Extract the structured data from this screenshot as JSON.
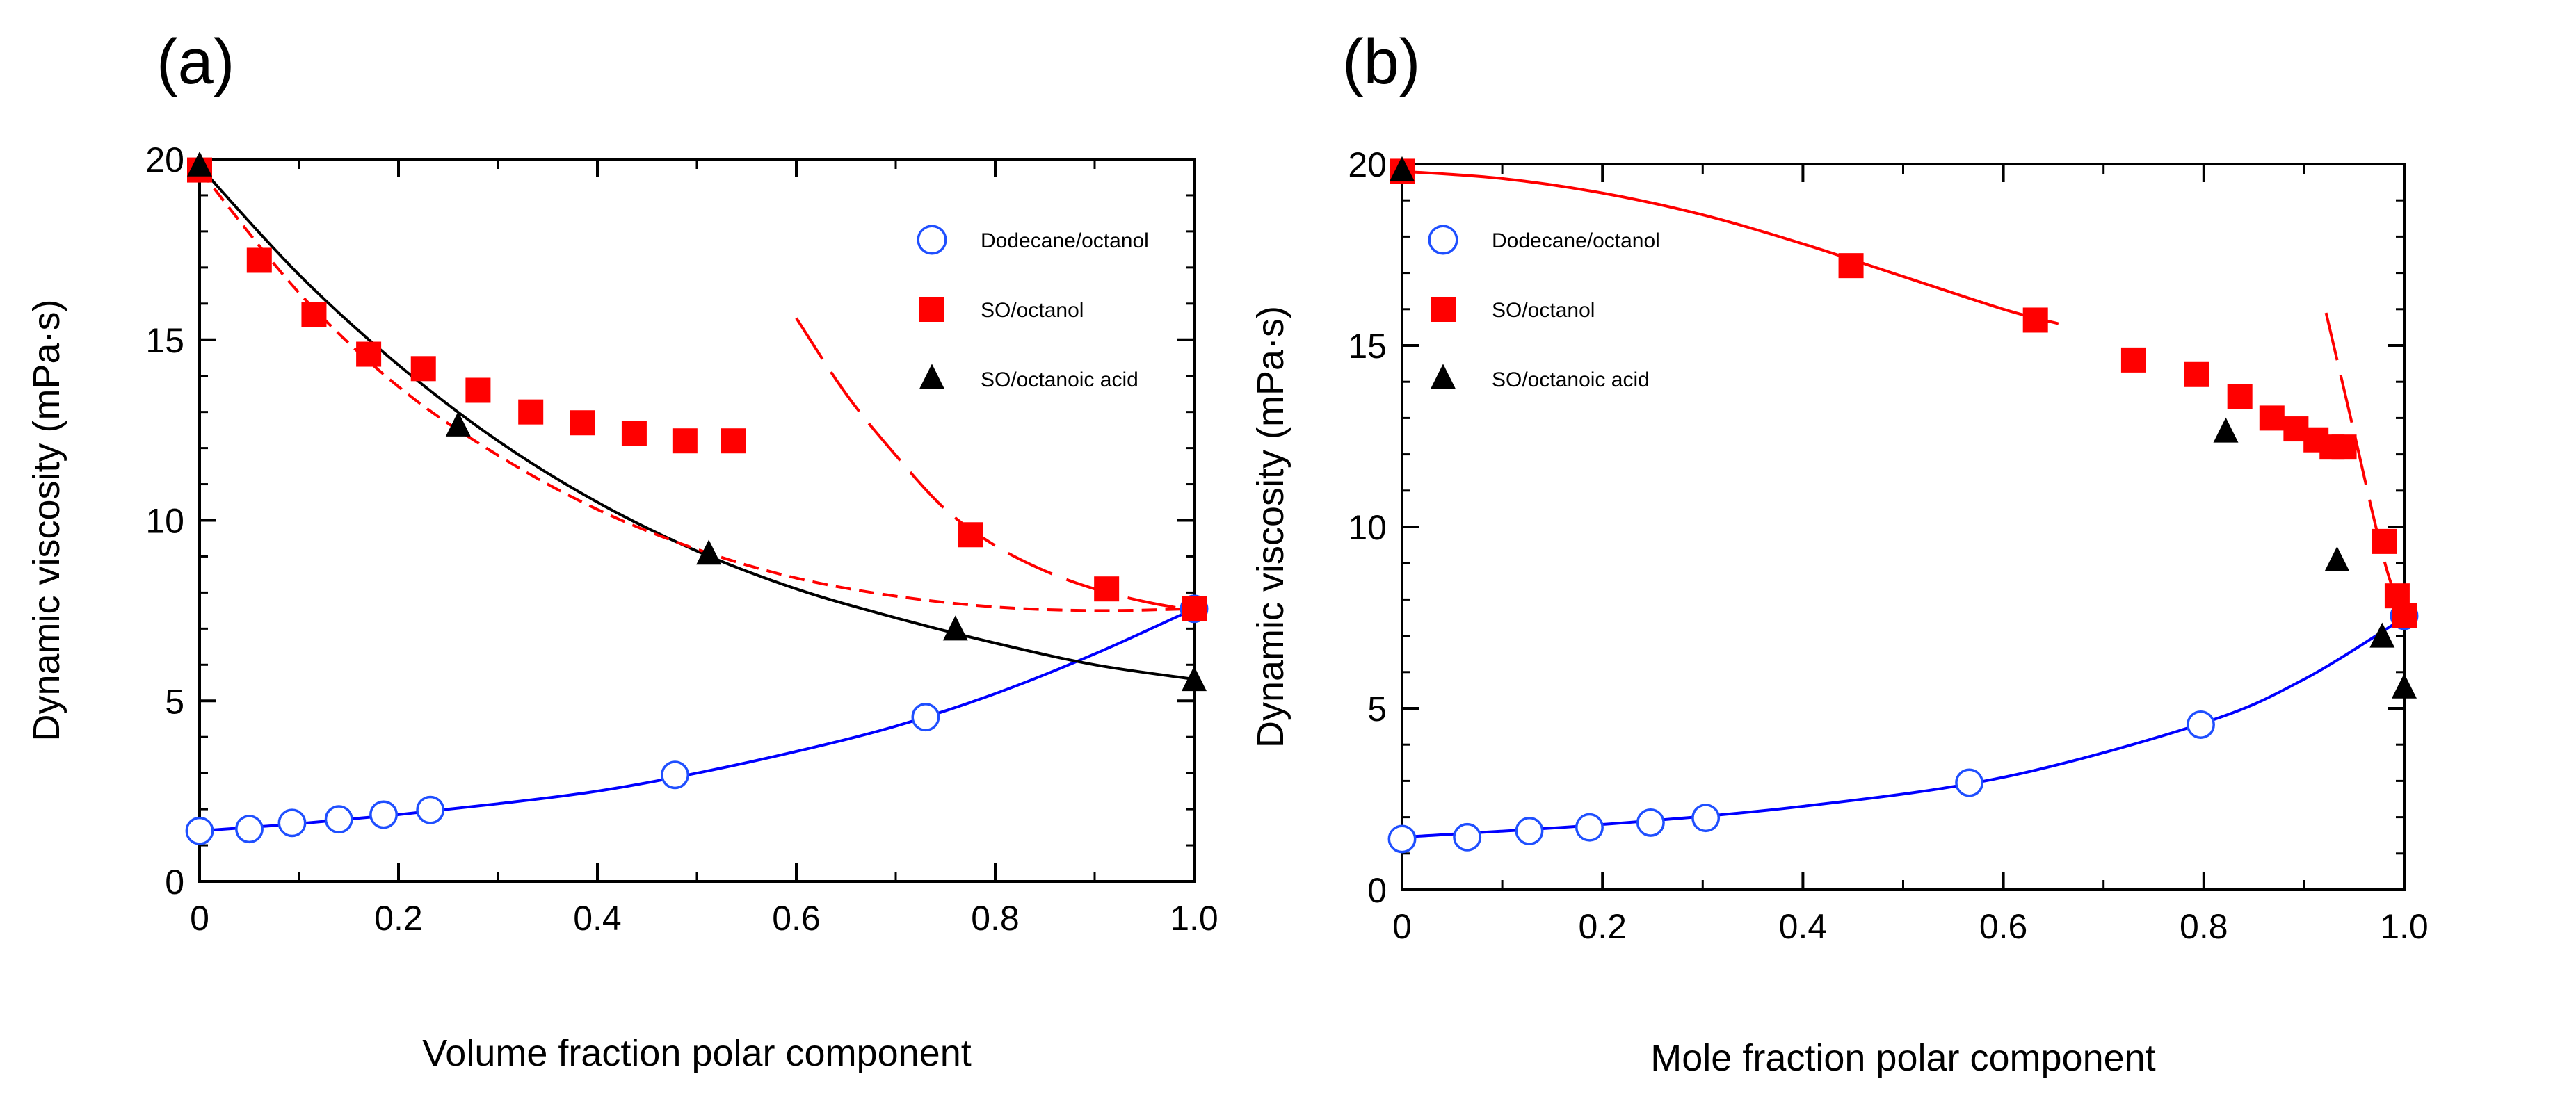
{
  "chart_data": [
    {
      "type": "scatter",
      "panel_label": "(a)",
      "xlabel": "Volume fraction polar component",
      "ylabel": "Dynamic viscosity (mPa·s)",
      "xlim": [
        0,
        1.0
      ],
      "ylim": [
        0,
        20
      ],
      "xticks": [
        0,
        0.2,
        0.4,
        0.6,
        0.8,
        1.0
      ],
      "xtick_labels": [
        "0",
        "0.2",
        "0.4",
        "0.6",
        "0.8",
        "1.0"
      ],
      "yticks": [
        0,
        5,
        10,
        15,
        20
      ],
      "ytick_labels": [
        "0",
        "5",
        "10",
        "15",
        "20"
      ],
      "legend_position": "top-right",
      "series": [
        {
          "name": "Dodecane/octanol",
          "marker": "open-circle",
          "color": "#1f4fff",
          "x": [
            0,
            0.05,
            0.093,
            0.14,
            0.185,
            0.232,
            0.478,
            0.73,
            1.0
          ],
          "y": [
            1.4,
            1.45,
            1.62,
            1.72,
            1.85,
            1.98,
            2.95,
            4.55,
            7.55
          ]
        },
        {
          "name": "SO/octanol",
          "marker": "filled-square",
          "color": "#ff0000",
          "x": [
            0,
            0.06,
            0.115,
            0.17,
            0.225,
            0.28,
            0.333,
            0.385,
            0.437,
            0.488,
            0.537,
            0.775,
            0.912,
            1.0
          ],
          "y": [
            19.7,
            17.2,
            15.7,
            14.6,
            14.2,
            13.6,
            13.0,
            12.7,
            12.4,
            12.2,
            12.2,
            9.6,
            8.1,
            7.55
          ]
        },
        {
          "name": "SO/octanoic acid",
          "marker": "filled-triangle",
          "color": "#000000",
          "x": [
            0,
            0.26,
            0.512,
            0.76,
            1.0
          ],
          "y": [
            19.8,
            12.6,
            9.05,
            6.95,
            5.55
          ]
        }
      ],
      "fits": [
        {
          "color": "#0000ff",
          "style": "solid",
          "x": [
            0,
            0.1,
            0.2,
            0.3,
            0.4,
            0.5,
            0.6,
            0.7,
            0.8,
            0.9,
            1.0
          ],
          "y": [
            1.4,
            1.6,
            1.85,
            2.15,
            2.5,
            3.0,
            3.6,
            4.3,
            5.2,
            6.3,
            7.55
          ]
        },
        {
          "color": "#000000",
          "style": "solid",
          "x": [
            0,
            0.1,
            0.2,
            0.3,
            0.4,
            0.5,
            0.6,
            0.7,
            0.8,
            0.9,
            1.0
          ],
          "y": [
            19.8,
            16.8,
            14.3,
            12.2,
            10.5,
            9.15,
            8.1,
            7.3,
            6.6,
            6.0,
            5.6
          ]
        },
        {
          "color": "#ff0000",
          "style": "short-dash",
          "x": [
            0,
            0.1,
            0.2,
            0.3,
            0.4,
            0.5,
            0.6,
            0.7,
            0.8,
            0.9,
            1.0
          ],
          "y": [
            19.7,
            16.3,
            13.7,
            11.8,
            10.3,
            9.2,
            8.4,
            7.9,
            7.6,
            7.5,
            7.55
          ]
        },
        {
          "color": "#ff0000",
          "style": "long-dash",
          "x": [
            0.6,
            0.65,
            0.7,
            0.75,
            0.8,
            0.85,
            0.9,
            0.95,
            1.0
          ],
          "y": [
            15.6,
            13.5,
            11.8,
            10.3,
            9.3,
            8.6,
            8.1,
            7.75,
            7.5
          ]
        }
      ]
    },
    {
      "type": "scatter",
      "panel_label": "(b)",
      "xlabel": "Mole fraction polar component",
      "ylabel": "Dynamic viscosity (mPa·s)",
      "xlim": [
        0,
        1.0
      ],
      "ylim": [
        0,
        20
      ],
      "xticks": [
        0,
        0.2,
        0.4,
        0.6,
        0.8,
        1.0
      ],
      "xtick_labels": [
        "0",
        "0.2",
        "0.4",
        "0.6",
        "0.8",
        "1.0"
      ],
      "yticks": [
        0,
        5,
        10,
        15,
        20
      ],
      "ytick_labels": [
        "0",
        "5",
        "10",
        "15",
        "20"
      ],
      "legend_position": "top-left",
      "series": [
        {
          "name": "Dodecane/octanol",
          "marker": "open-circle",
          "color": "#1f4fff",
          "x": [
            0,
            0.065,
            0.127,
            0.187,
            0.248,
            0.303,
            0.566,
            0.797,
            1.0
          ],
          "y": [
            1.4,
            1.45,
            1.62,
            1.72,
            1.85,
            1.98,
            2.95,
            4.55,
            7.55
          ]
        },
        {
          "name": "SO/octanol",
          "marker": "filled-square",
          "color": "#ff0000",
          "x": [
            0,
            0.448,
            0.632,
            0.73,
            0.793,
            0.836,
            0.868,
            0.892,
            0.912,
            0.928,
            0.94,
            0.98,
            0.993,
            1.0
          ],
          "y": [
            19.8,
            17.2,
            15.7,
            14.6,
            14.2,
            13.6,
            13.0,
            12.7,
            12.4,
            12.2,
            12.2,
            9.6,
            8.1,
            7.55
          ]
        },
        {
          "name": "SO/octanoic acid",
          "marker": "filled-triangle",
          "color": "#000000",
          "x": [
            0,
            0.822,
            0.933,
            0.978,
            1.0
          ],
          "y": [
            19.8,
            12.6,
            9.05,
            6.95,
            5.55
          ]
        }
      ],
      "fits": [
        {
          "color": "#0000ff",
          "style": "solid",
          "x": [
            0,
            0.2,
            0.4,
            0.6,
            0.8,
            0.9,
            1.0
          ],
          "y": [
            1.45,
            1.8,
            2.3,
            3.1,
            4.6,
            5.8,
            7.5
          ]
        },
        {
          "color": "#ff0000",
          "style": "solid",
          "x": [
            0,
            0.1,
            0.2,
            0.3,
            0.4,
            0.5,
            0.6,
            0.655
          ],
          "y": [
            19.8,
            19.6,
            19.2,
            18.6,
            17.8,
            16.9,
            16.0,
            15.6
          ]
        },
        {
          "color": "#ff0000",
          "style": "long-dash",
          "x": [
            0.922,
            0.95,
            0.97,
            0.985,
            1.0
          ],
          "y": [
            15.9,
            12.6,
            10.2,
            8.6,
            7.55
          ]
        }
      ]
    }
  ]
}
